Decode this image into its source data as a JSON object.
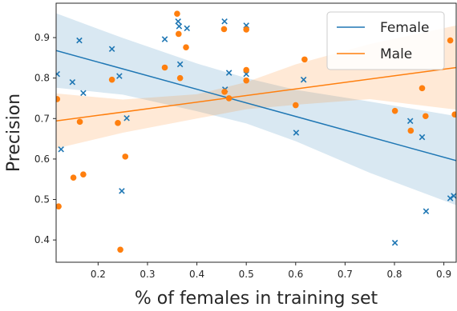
{
  "chart_data": {
    "type": "scatter",
    "title": "",
    "xlabel": "% of females in training set",
    "ylabel": "Precision",
    "xlim": [
      0.115,
      0.925
    ],
    "ylim": [
      0.345,
      0.985
    ],
    "xticks": [
      0.2,
      0.3,
      0.4,
      0.5,
      0.6,
      0.7,
      0.8,
      0.9
    ],
    "yticks": [
      0.4,
      0.5,
      0.6,
      0.7,
      0.8,
      0.9
    ],
    "xtick_labels": [
      "0.2",
      "0.3",
      "0.4",
      "0.5",
      "0.6",
      "0.7",
      "0.8",
      "0.9"
    ],
    "ytick_labels": [
      "0.4",
      "0.5",
      "0.6",
      "0.7",
      "0.8",
      "0.9"
    ],
    "grid": false,
    "legend_position": "top-right",
    "series": [
      {
        "name": "Female",
        "color": "#1f77b4",
        "marker": "x",
        "points": [
          [
            0.117,
            0.81
          ],
          [
            0.125,
            0.624
          ],
          [
            0.148,
            0.79
          ],
          [
            0.162,
            0.893
          ],
          [
            0.17,
            0.763
          ],
          [
            0.228,
            0.872
          ],
          [
            0.243,
            0.805
          ],
          [
            0.248,
            0.521
          ],
          [
            0.258,
            0.701
          ],
          [
            0.335,
            0.896
          ],
          [
            0.362,
            0.94
          ],
          [
            0.364,
            0.928
          ],
          [
            0.366,
            0.834
          ],
          [
            0.38,
            0.923
          ],
          [
            0.456,
            0.94
          ],
          [
            0.457,
            0.772
          ],
          [
            0.465,
            0.813
          ],
          [
            0.5,
            0.93
          ],
          [
            0.5,
            0.81
          ],
          [
            0.601,
            0.665
          ],
          [
            0.616,
            0.796
          ],
          [
            0.801,
            0.393
          ],
          [
            0.832,
            0.694
          ],
          [
            0.856,
            0.654
          ],
          [
            0.864,
            0.471
          ],
          [
            0.913,
            0.503
          ],
          [
            0.92,
            0.509
          ]
        ],
        "fit": {
          "x": [
            0.115,
            0.925
          ],
          "y": [
            0.868,
            0.596
          ]
        },
        "ci": {
          "x": [
            0.115,
            0.25,
            0.4,
            0.5,
            0.6,
            0.75,
            0.925
          ],
          "upper": [
            0.96,
            0.899,
            0.836,
            0.8,
            0.771,
            0.742,
            0.706
          ],
          "lower": [
            0.776,
            0.759,
            0.718,
            0.688,
            0.644,
            0.566,
            0.486
          ]
        }
      },
      {
        "name": "Male",
        "color": "#ff7f0e",
        "marker": "o",
        "points": [
          [
            0.117,
            0.748
          ],
          [
            0.12,
            0.483
          ],
          [
            0.15,
            0.554
          ],
          [
            0.163,
            0.692
          ],
          [
            0.17,
            0.562
          ],
          [
            0.228,
            0.796
          ],
          [
            0.24,
            0.689
          ],
          [
            0.245,
            0.376
          ],
          [
            0.255,
            0.606
          ],
          [
            0.335,
            0.826
          ],
          [
            0.36,
            0.959
          ],
          [
            0.363,
            0.909
          ],
          [
            0.366,
            0.8
          ],
          [
            0.378,
            0.876
          ],
          [
            0.455,
            0.921
          ],
          [
            0.456,
            0.766
          ],
          [
            0.465,
            0.75
          ],
          [
            0.5,
            0.92
          ],
          [
            0.5,
            0.82
          ],
          [
            0.5,
            0.794
          ],
          [
            0.6,
            0.733
          ],
          [
            0.618,
            0.846
          ],
          [
            0.801,
            0.719
          ],
          [
            0.833,
            0.67
          ],
          [
            0.856,
            0.775
          ],
          [
            0.863,
            0.706
          ],
          [
            0.913,
            0.893
          ],
          [
            0.922,
            0.71
          ]
        ],
        "fit": {
          "x": [
            0.115,
            0.925
          ],
          "y": [
            0.694,
            0.826
          ]
        },
        "ci": {
          "x": [
            0.115,
            0.25,
            0.4,
            0.5,
            0.6,
            0.75,
            0.925
          ],
          "upper": [
            0.762,
            0.747,
            0.76,
            0.79,
            0.834,
            0.884,
            0.93
          ],
          "lower": [
            0.626,
            0.665,
            0.7,
            0.723,
            0.734,
            0.748,
            0.722
          ]
        }
      }
    ]
  }
}
